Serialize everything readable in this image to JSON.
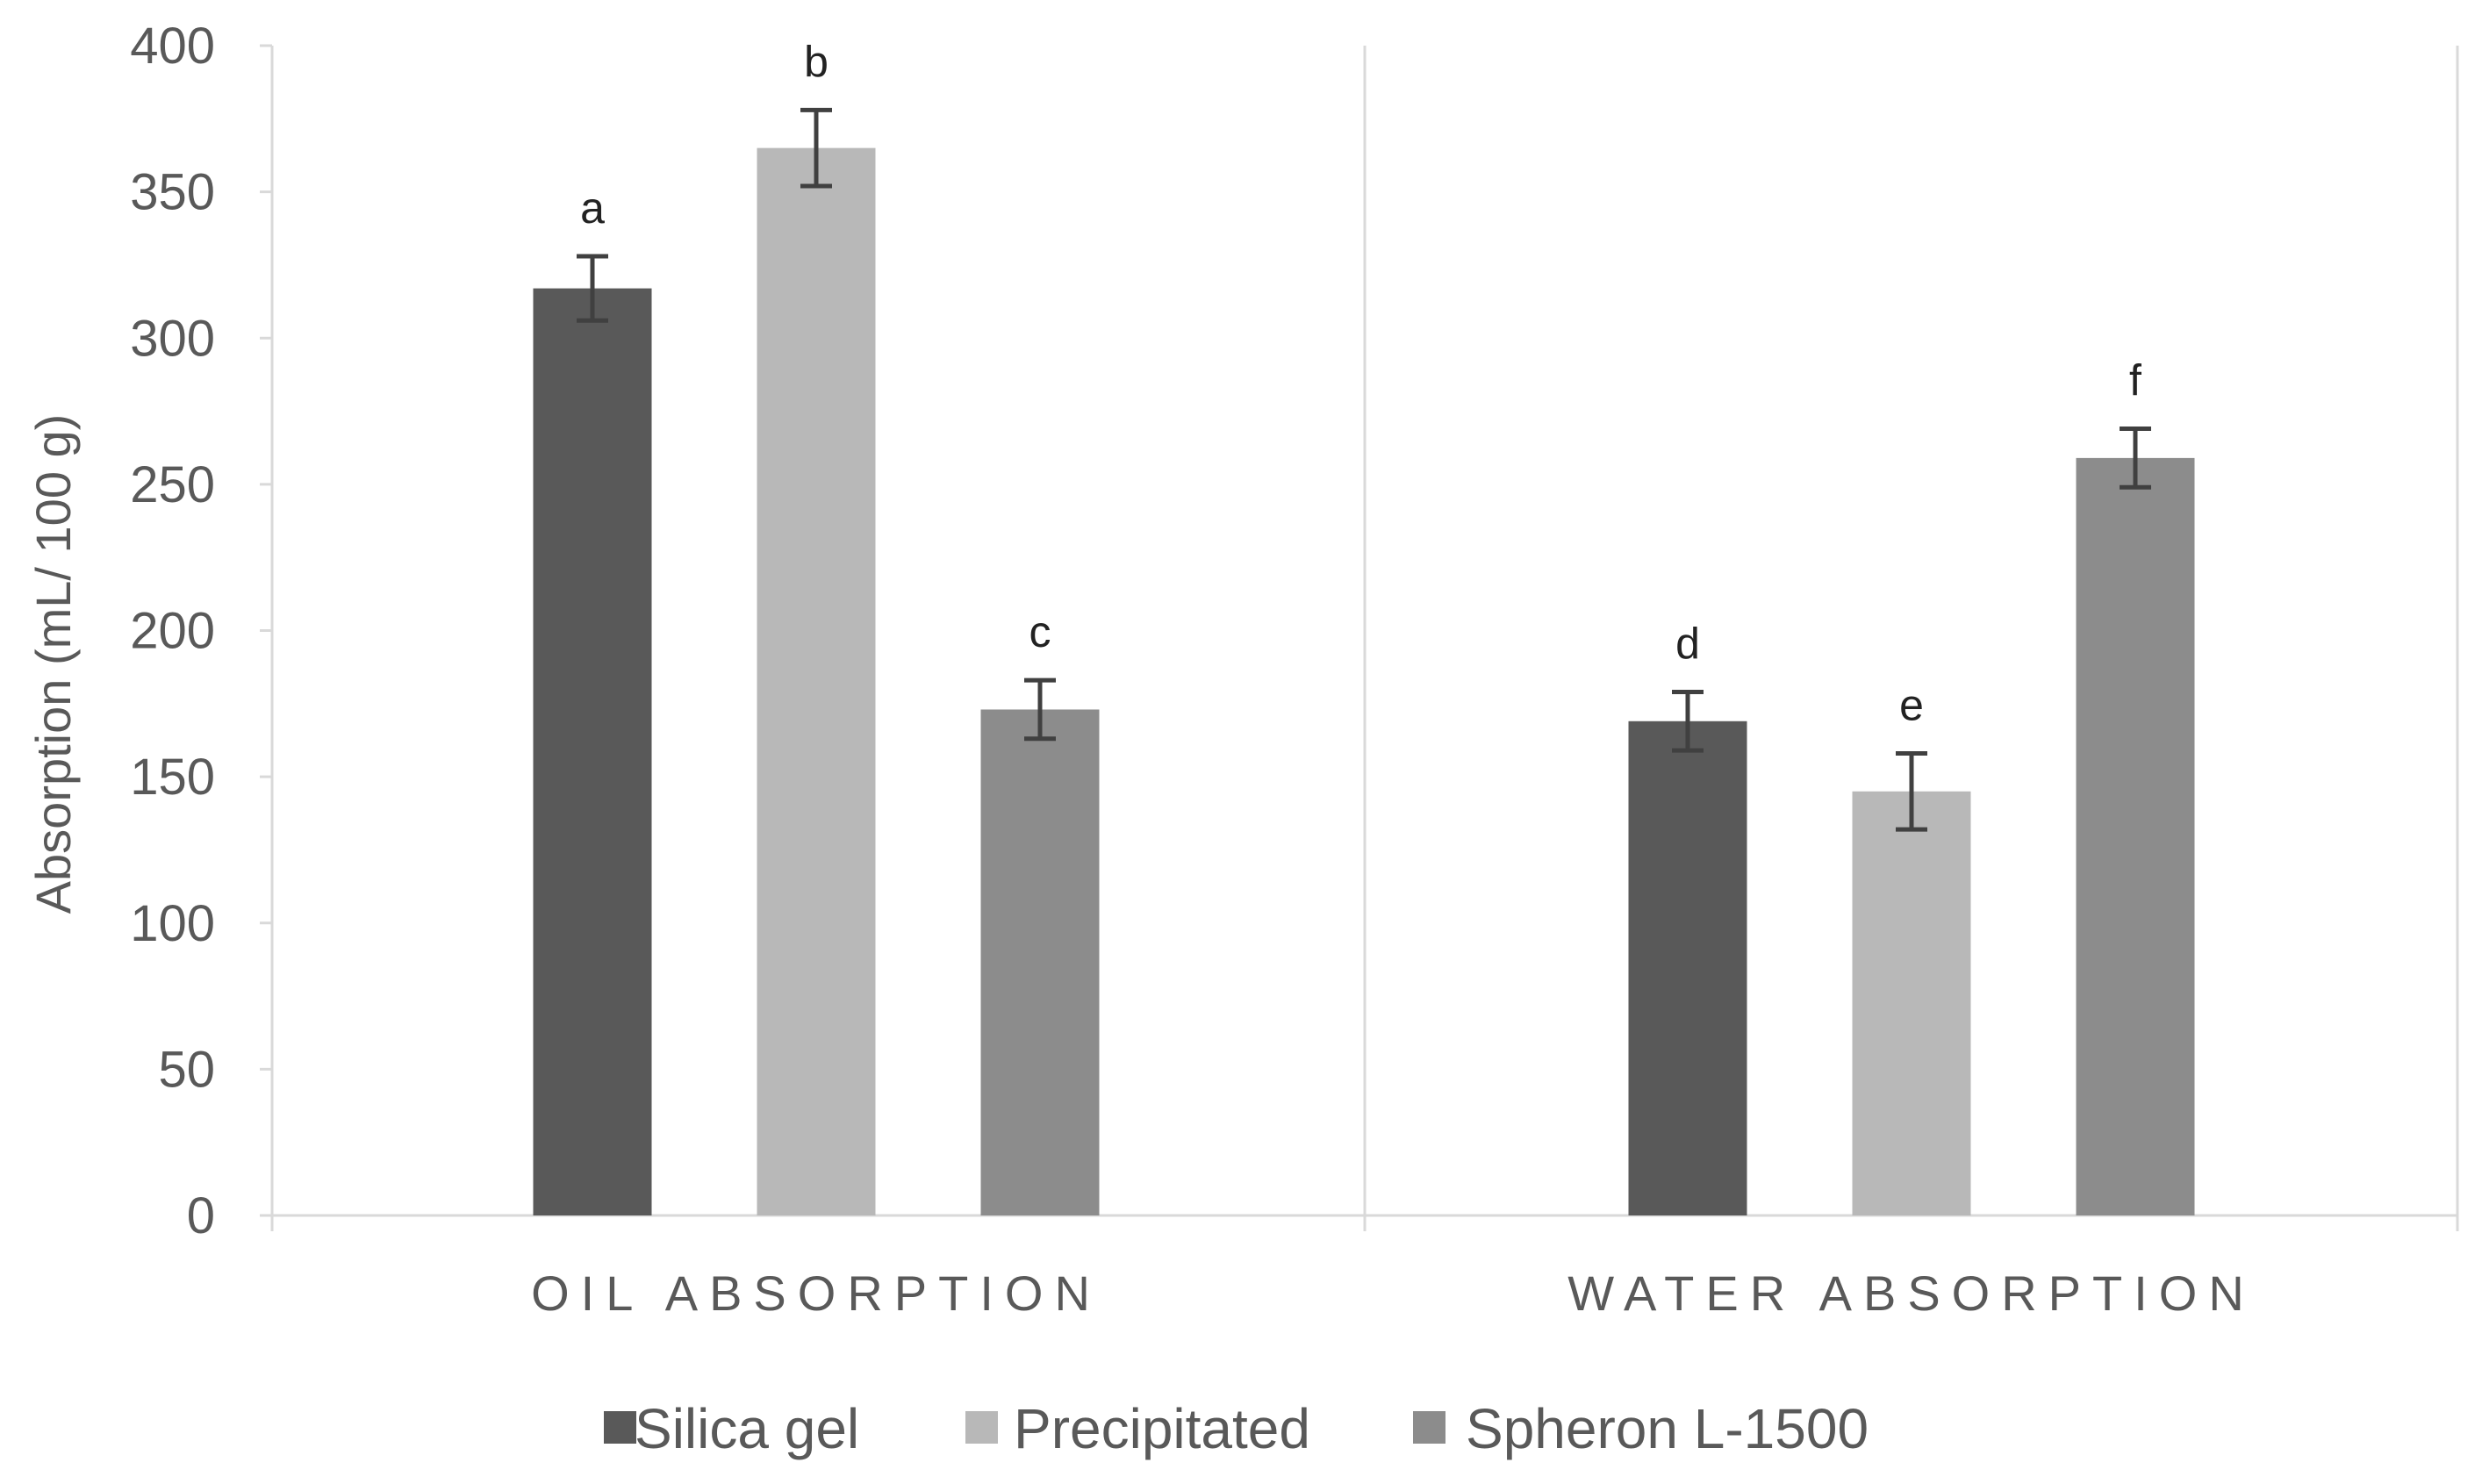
{
  "chart_data": {
    "type": "bar",
    "title": "",
    "xlabel": "",
    "ylabel": "Absorption (mL/ 100 g)",
    "ylim": [
      0,
      400
    ],
    "yticks": [
      0,
      50,
      100,
      150,
      200,
      250,
      300,
      350,
      400
    ],
    "categories": [
      "OIL ABSORPTION",
      "WATER ABSORPTION"
    ],
    "series": [
      {
        "name": "Silica gel",
        "color": "#595959",
        "values": [
          317,
          169
        ],
        "errors": [
          11,
          10
        ],
        "letters": [
          "a",
          "d"
        ]
      },
      {
        "name": "Precipitated",
        "color": "#b8b8b8",
        "values": [
          365,
          145
        ],
        "errors": [
          13,
          13
        ],
        "letters": [
          "b",
          "e"
        ]
      },
      {
        "name": "Spheron L-1500",
        "color": "#8c8c8c",
        "values": [
          173,
          259
        ],
        "errors": [
          10,
          10
        ],
        "letters": [
          "c",
          "f"
        ]
      }
    ],
    "grid": false,
    "legend_position": "bottom",
    "colors": {
      "axis": "#d9d9d9",
      "text": "#595959",
      "error_bar": "#404040",
      "annotation": "#222222"
    }
  }
}
